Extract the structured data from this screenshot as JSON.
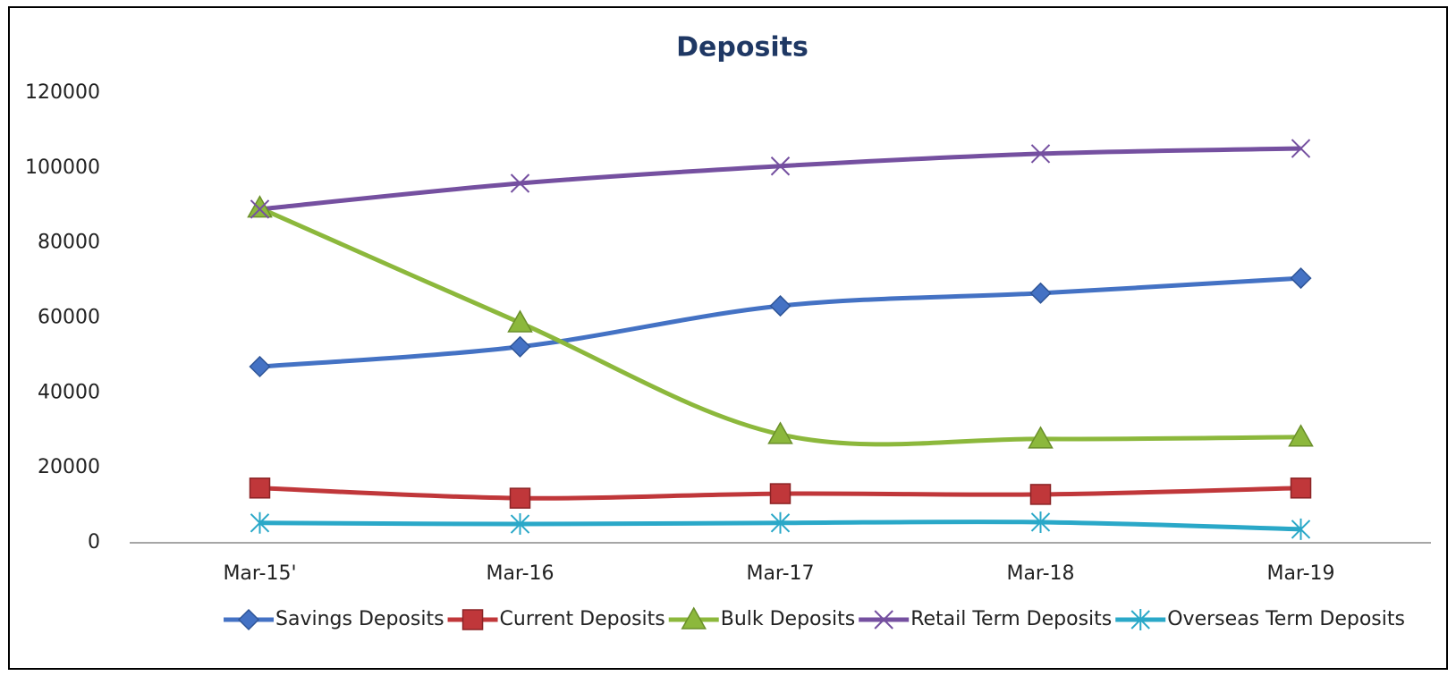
{
  "chart_data": {
    "type": "line",
    "title": "Deposits",
    "categories": [
      "Mar-15'",
      "Mar-16",
      "Mar-17",
      "Mar-18",
      "Mar-19"
    ],
    "series": [
      {
        "name": "Savings Deposits",
        "color": "#4472c4",
        "marker": "diamond",
        "values": [
          47000,
          52300,
          63200,
          66600,
          70600
        ]
      },
      {
        "name": "Current Deposits",
        "color": "#c0373a",
        "marker": "square",
        "values": [
          14600,
          11900,
          13100,
          12900,
          14600
        ]
      },
      {
        "name": "Bulk Deposits",
        "color": "#8cb83c",
        "marker": "triangle",
        "values": [
          89300,
          58700,
          28900,
          27700,
          28200
        ]
      },
      {
        "name": "Retail Term Deposits",
        "color": "#7550a0",
        "marker": "x",
        "values": [
          89000,
          95900,
          100500,
          103800,
          105200
        ]
      },
      {
        "name": "Overseas Term Deposits",
        "color": "#2aa8c8",
        "marker": "star",
        "values": [
          5300,
          5000,
          5300,
          5500,
          3600
        ]
      }
    ],
    "ylim": [
      0,
      120000
    ],
    "yticks": [
      0,
      20000,
      40000,
      60000,
      80000,
      100000,
      120000
    ],
    "legend": "bottom",
    "smooth": true
  }
}
